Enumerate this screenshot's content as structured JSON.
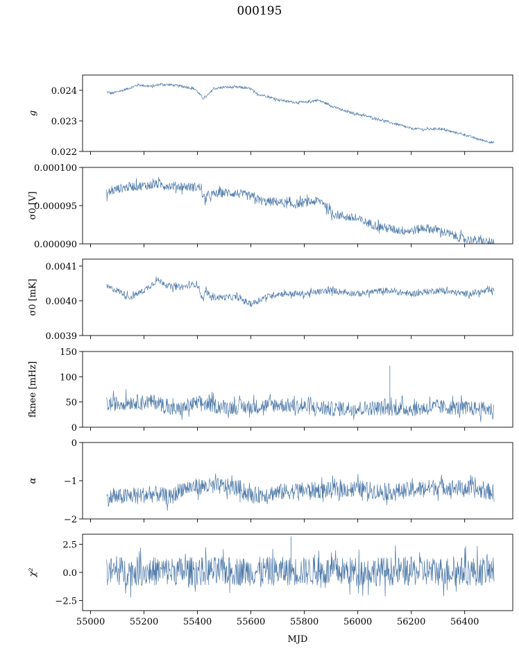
{
  "figure": {
    "title": "000195",
    "xlabel": "MJD",
    "colors": {
      "series": "#4c78a8",
      "axes": "#000000",
      "background": "#ffffff"
    }
  },
  "chart_data": [
    {
      "type": "line",
      "panel": "gain",
      "ylabel": "g",
      "xlim": [
        54970,
        56580
      ],
      "ylim": [
        0.022,
        0.0245
      ],
      "yticks": [
        0.022,
        0.023,
        0.024
      ],
      "ytick_labels": [
        "0.022",
        "0.023",
        "0.024"
      ],
      "xticks": [
        55000,
        55200,
        55400,
        55600,
        55800,
        56000,
        56200,
        56400
      ],
      "xtick_labels": [],
      "noise_amplitude": 4e-05,
      "spikes": [],
      "x": [
        55060,
        55080,
        55120,
        55180,
        55230,
        55260,
        55300,
        55350,
        55390,
        55420,
        55435,
        55460,
        55500,
        55560,
        55600,
        55620,
        55650,
        55700,
        55750,
        55800,
        55850,
        55880,
        55900,
        55950,
        56000,
        56050,
        56100,
        56140,
        56200,
        56250,
        56300,
        56350,
        56400,
        56450,
        56510
      ],
      "y": [
        0.02395,
        0.0239,
        0.024,
        0.02418,
        0.02412,
        0.0242,
        0.02418,
        0.02412,
        0.02405,
        0.02375,
        0.0238,
        0.02405,
        0.0241,
        0.0241,
        0.02405,
        0.02388,
        0.02383,
        0.0237,
        0.02362,
        0.0236,
        0.02368,
        0.02358,
        0.0235,
        0.02332,
        0.02322,
        0.02312,
        0.023,
        0.0229,
        0.02275,
        0.02272,
        0.02275,
        0.02265,
        0.02255,
        0.0224,
        0.02228
      ]
    },
    {
      "type": "line",
      "panel": "sigma0-volts",
      "ylabel": "σ0 [V]",
      "xlim": [
        54970,
        56580
      ],
      "ylim": [
        9e-05,
        0.0001
      ],
      "yticks": [
        9e-05,
        9.5e-05,
        0.0001
      ],
      "ytick_labels": [
        "0.000090",
        "0.000095",
        "0.000100"
      ],
      "xticks": [
        55000,
        55200,
        55400,
        55600,
        55800,
        56000,
        56200,
        56400
      ],
      "xtick_labels": [],
      "noise_amplitude": 6e-07,
      "spikes": [],
      "x": [
        55060,
        55100,
        55150,
        55200,
        55250,
        55300,
        55350,
        55400,
        55415,
        55420,
        55450,
        55500,
        55550,
        55600,
        55650,
        55700,
        55750,
        55800,
        55850,
        55870,
        55900,
        55950,
        56000,
        56050,
        56100,
        56150,
        56200,
        56250,
        56300,
        56350,
        56400,
        56450,
        56510
      ],
      "y": [
        9.66e-05,
        9.72e-05,
        9.75e-05,
        9.76e-05,
        9.78e-05,
        9.76e-05,
        9.75e-05,
        9.74e-05,
        9.74e-05,
        9.58e-05,
        9.64e-05,
        9.67e-05,
        9.66e-05,
        9.62e-05,
        9.55e-05,
        9.55e-05,
        9.51e-05,
        9.54e-05,
        9.56e-05,
        9.55e-05,
        9.4e-05,
        9.36e-05,
        9.32e-05,
        9.26e-05,
        9.21e-05,
        9.18e-05,
        9.17e-05,
        9.21e-05,
        9.18e-05,
        9.12e-05,
        9.06e-05,
        9.04e-05,
        9e-05
      ]
    },
    {
      "type": "line",
      "panel": "sigma0-mk",
      "ylabel": "σ0 [mK]",
      "xlim": [
        54970,
        56580
      ],
      "ylim": [
        0.0039,
        0.00412
      ],
      "yticks": [
        0.0039,
        0.004,
        0.0041
      ],
      "ytick_labels": [
        "0.0039",
        "0.0040",
        "0.0041"
      ],
      "xticks": [
        55000,
        55200,
        55400,
        55600,
        55800,
        56000,
        56200,
        56400
      ],
      "xtick_labels": [],
      "noise_amplitude": 9e-06,
      "spikes": [],
      "x": [
        55060,
        55100,
        55150,
        55200,
        55250,
        55280,
        55300,
        55350,
        55400,
        55420,
        55430,
        55450,
        55500,
        55550,
        55600,
        55650,
        55700,
        55800,
        55900,
        56000,
        56100,
        56200,
        56300,
        56400,
        56510
      ],
      "y": [
        0.00404,
        0.00403,
        0.00401,
        0.00403,
        0.00406,
        0.00405,
        0.00404,
        0.00404,
        0.00405,
        0.004,
        0.00403,
        0.00401,
        0.00401,
        0.00401,
        0.00399,
        0.00401,
        0.00402,
        0.00402,
        0.00403,
        0.00402,
        0.00403,
        0.00402,
        0.00403,
        0.00402,
        0.00403
      ]
    },
    {
      "type": "line",
      "panel": "fknee",
      "ylabel": "fknee [mHz]",
      "xlim": [
        54970,
        56580
      ],
      "ylim": [
        0,
        150
      ],
      "yticks": [
        0,
        50,
        100,
        150
      ],
      "ytick_labels": [
        "0",
        "50",
        "100",
        "150"
      ],
      "xticks": [
        55000,
        55200,
        55400,
        55600,
        55800,
        56000,
        56200,
        56400
      ],
      "xtick_labels": [],
      "noise_amplitude": 15,
      "spikes": [
        {
          "x": 56120,
          "y": 122
        }
      ],
      "x": [
        55060,
        55150,
        55250,
        55300,
        55330,
        55400,
        55500,
        55600,
        55700,
        55800,
        55900,
        56000,
        56100,
        56200,
        56300,
        56400,
        56510
      ],
      "y": [
        45,
        50,
        50,
        35,
        35,
        48,
        40,
        40,
        45,
        40,
        36,
        38,
        38,
        36,
        40,
        38,
        35
      ]
    },
    {
      "type": "line",
      "panel": "alpha",
      "ylabel": "α",
      "xlim": [
        54970,
        56580
      ],
      "ylim": [
        -2,
        0
      ],
      "yticks": [
        -2,
        -1,
        0
      ],
      "ytick_labels": [
        "−2",
        "−1",
        "0"
      ],
      "xticks": [
        55000,
        55200,
        55400,
        55600,
        55800,
        56000,
        56200,
        56400
      ],
      "xtick_labels": [],
      "noise_amplitude": 0.22,
      "spikes": [],
      "x": [
        55060,
        55150,
        55250,
        55300,
        55340,
        55400,
        55500,
        55560,
        55600,
        55700,
        55800,
        55900,
        56000,
        56100,
        56200,
        56300,
        56400,
        56510
      ],
      "y": [
        -1.45,
        -1.4,
        -1.35,
        -1.45,
        -1.2,
        -1.15,
        -1.15,
        -1.2,
        -1.4,
        -1.3,
        -1.25,
        -1.25,
        -1.2,
        -1.3,
        -1.25,
        -1.15,
        -1.2,
        -1.3
      ]
    },
    {
      "type": "line",
      "panel": "chi2",
      "ylabel": "χ²",
      "xlim": [
        54970,
        56580
      ],
      "ylim": [
        -3.4,
        3.4
      ],
      "yticks": [
        -2.5,
        0,
        2.5
      ],
      "ytick_labels": [
        "−2.5",
        "0.0",
        "2.5"
      ],
      "xticks": [
        55000,
        55200,
        55400,
        55600,
        55800,
        56000,
        56200,
        56400
      ],
      "xtick_labels": [
        "55000",
        "55200",
        "55400",
        "55600",
        "55800",
        "56000",
        "56200",
        "56400"
      ],
      "noise_amplitude": 1.3,
      "spikes": [
        {
          "x": 55750,
          "y": 3.2
        }
      ],
      "x": [
        55060,
        56510
      ],
      "y": [
        0.1,
        0.1
      ]
    }
  ]
}
